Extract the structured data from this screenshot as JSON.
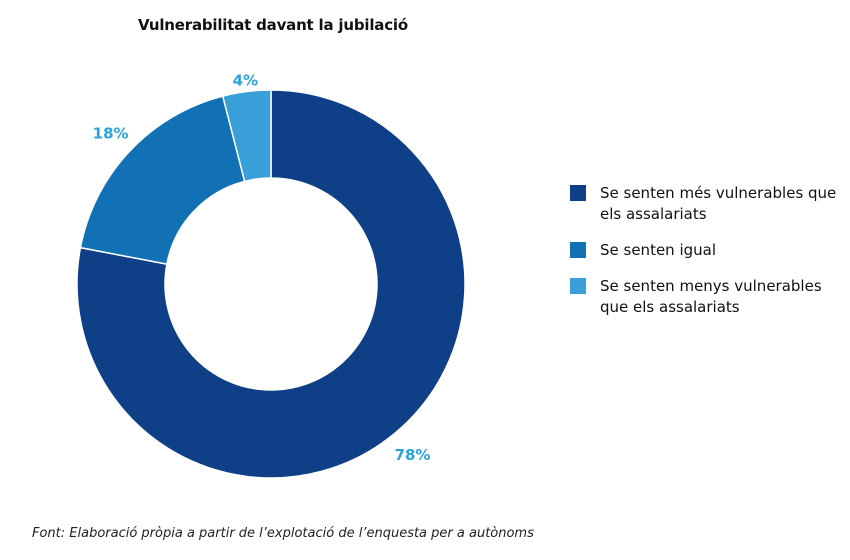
{
  "chart_data": {
    "type": "pie",
    "variant": "donut",
    "title": "Vulnerabilitat davant la jubilació",
    "slices": [
      {
        "label": "Se senten més vulnerables que els assalariats",
        "value": 78,
        "display": "78%",
        "color": "#0e3f87"
      },
      {
        "label": "Se senten igual",
        "value": 18,
        "display": "18%",
        "color": "#1171b4"
      },
      {
        "label": "Se senten menys vulnerables que els assalariats",
        "value": 4,
        "display": "4%",
        "color": "#399fd8"
      }
    ],
    "label_color": "#29a3dc",
    "legend_position": "right",
    "source": "Font:  Elaboració pròpia a partir de l’explotació de l’enquesta per a autònoms"
  }
}
